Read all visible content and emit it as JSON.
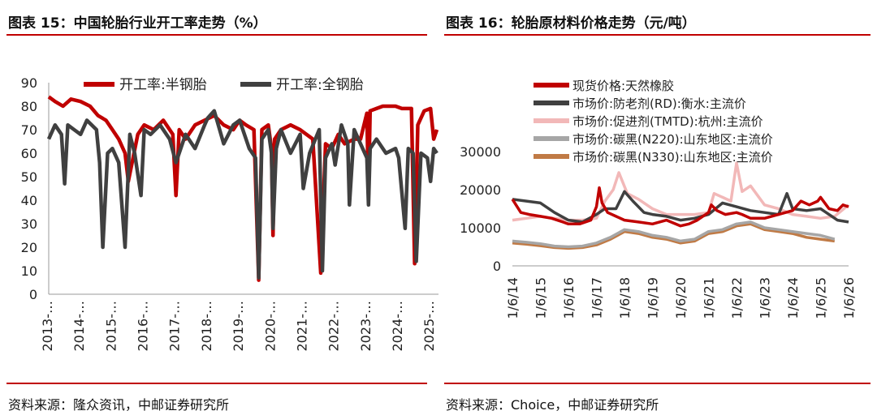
{
  "left_panel": {
    "title": "图表 15：中国轮胎行业开工率走势（%）",
    "source": "资料来源：隆众资讯，中邮证券研究所"
  },
  "right_panel": {
    "title": "图表 16：轮胎原材料价格走势（元/吨）",
    "source": "资料来源：Choice，中邮证券研究所"
  },
  "colors": {
    "rule": "#c00000",
    "red": "#c00000",
    "dark": "#404040",
    "pink": "#f2b8b8",
    "gray": "#a6a6a6",
    "brown": "#c07a45"
  },
  "chart_data": [
    {
      "type": "line",
      "title": "中国轮胎行业开工率走势（%）",
      "ylim": [
        0,
        90
      ],
      "yticks": [
        "0",
        "10",
        "20",
        "30",
        "40",
        "50",
        "60",
        "70",
        "80",
        "90"
      ],
      "xticks": [
        "2013-…",
        "2014-…",
        "2015-…",
        "2016-…",
        "2017-…",
        "2018-…",
        "2019-…",
        "2020-…",
        "2021-…",
        "2022-…",
        "2023-…",
        "2024-…",
        "2025-…"
      ],
      "legend": "top",
      "series": [
        {
          "name": "开工率:半钢胎",
          "color": "#c00000",
          "x": [
            2013.0,
            2013.2,
            2013.45,
            2013.7,
            2014.0,
            2014.3,
            2014.55,
            2014.8,
            2015.0,
            2015.2,
            2015.4,
            2015.5,
            2015.8,
            2016.0,
            2016.3,
            2016.6,
            2016.9,
            2017.0,
            2017.1,
            2017.3,
            2017.6,
            2017.9,
            2018.2,
            2018.5,
            2018.8,
            2019.0,
            2019.2,
            2019.45,
            2019.6,
            2019.7,
            2019.9,
            2020.0,
            2020.05,
            2020.1,
            2020.3,
            2020.6,
            2020.9,
            2021.1,
            2021.3,
            2021.55,
            2021.7,
            2021.9,
            2022.1,
            2022.3,
            2022.6,
            2022.8,
            2023.0,
            2023.05,
            2023.1,
            2023.3,
            2023.5,
            2023.7,
            2023.9,
            2024.1,
            2024.4,
            2024.5,
            2024.6,
            2024.8,
            2025.0,
            2025.1,
            2025.2
          ],
          "values": [
            84,
            82,
            80,
            83,
            82,
            80,
            76,
            74,
            70,
            66,
            60,
            48,
            68,
            72,
            70,
            74,
            68,
            42,
            70,
            66,
            72,
            74,
            76,
            72,
            70,
            74,
            72,
            70,
            6,
            70,
            72,
            62,
            25,
            66,
            70,
            72,
            70,
            68,
            66,
            9,
            64,
            62,
            68,
            64,
            66,
            66,
            77,
            42,
            78,
            79,
            80,
            80,
            80,
            79,
            79,
            13,
            72,
            78,
            79,
            66,
            70
          ]
        },
        {
          "name": "开工率:全钢胎",
          "color": "#404040",
          "x": [
            2013.0,
            2013.2,
            2013.4,
            2013.5,
            2013.6,
            2013.8,
            2014.0,
            2014.2,
            2014.5,
            2014.6,
            2014.7,
            2014.85,
            2015.0,
            2015.2,
            2015.4,
            2015.55,
            2015.7,
            2015.9,
            2016.0,
            2016.2,
            2016.5,
            2016.8,
            2017.0,
            2017.3,
            2017.6,
            2017.9,
            2018.0,
            2018.2,
            2018.5,
            2018.8,
            2019.0,
            2019.3,
            2019.5,
            2019.6,
            2019.7,
            2019.9,
            2020.0,
            2020.05,
            2020.15,
            2020.3,
            2020.6,
            2020.9,
            2021.0,
            2021.2,
            2021.5,
            2021.6,
            2021.7,
            2021.9,
            2022.0,
            2022.2,
            2022.4,
            2022.45,
            2022.6,
            2022.8,
            2023.0,
            2023.05,
            2023.1,
            2023.3,
            2023.6,
            2023.9,
            2024.0,
            2024.2,
            2024.3,
            2024.45,
            2024.55,
            2024.7,
            2024.9,
            2025.0,
            2025.1,
            2025.2
          ],
          "values": [
            66,
            72,
            68,
            47,
            72,
            70,
            68,
            74,
            70,
            56,
            20,
            60,
            62,
            56,
            20,
            68,
            60,
            42,
            70,
            68,
            72,
            66,
            56,
            68,
            62,
            72,
            75,
            78,
            64,
            72,
            74,
            62,
            58,
            7,
            66,
            70,
            60,
            28,
            62,
            70,
            60,
            68,
            45,
            60,
            70,
            10,
            58,
            64,
            55,
            72,
            64,
            38,
            70,
            64,
            58,
            38,
            62,
            66,
            60,
            62,
            58,
            28,
            62,
            60,
            14,
            60,
            58,
            48,
            62,
            60
          ]
        }
      ]
    },
    {
      "type": "line",
      "title": "轮胎原材料价格走势（元/吨）",
      "ylim": [
        0,
        30000
      ],
      "yticks": [
        "0",
        "10000",
        "20000",
        "30000"
      ],
      "xticks": [
        "1/6/14",
        "1/6/15",
        "1/6/16",
        "1/6/17",
        "1/6/18",
        "1/6/19",
        "1/6/20",
        "1/6/21",
        "1/6/22",
        "1/6/23",
        "1/6/24",
        "1/6/25",
        "1/6/26"
      ],
      "legend": "top-left",
      "series": [
        {
          "name": "现货价格:天然橡胶",
          "color": "#c00000",
          "x": [
            14.0,
            14.3,
            14.6,
            15.0,
            15.4,
            15.8,
            16.0,
            16.4,
            16.8,
            17.0,
            17.1,
            17.2,
            17.4,
            17.7,
            18.0,
            18.5,
            19.0,
            19.5,
            20.0,
            20.3,
            20.6,
            21.0,
            21.1,
            21.3,
            21.6,
            22.0,
            22.2,
            22.5,
            23.0,
            23.5,
            24.0,
            24.3,
            24.6,
            24.9,
            25.0,
            25.3,
            25.6,
            25.8,
            26.0
          ],
          "values": [
            17500,
            14000,
            13500,
            13000,
            12500,
            11500,
            11000,
            11000,
            12000,
            15500,
            20500,
            16500,
            14000,
            13000,
            12000,
            11500,
            11000,
            12000,
            10500,
            11000,
            12000,
            14000,
            16000,
            14500,
            13500,
            14000,
            13500,
            12500,
            12500,
            13500,
            14500,
            17000,
            16000,
            17000,
            18000,
            15000,
            14500,
            16000,
            15500
          ]
        },
        {
          "name": "市场价:防老剂(RD):衡水:主流价",
          "color": "#404040",
          "x": [
            14.0,
            14.5,
            15.0,
            15.5,
            16.0,
            16.5,
            17.0,
            17.3,
            17.7,
            18.0,
            18.3,
            18.7,
            19.0,
            19.5,
            20.0,
            20.5,
            21.0,
            21.5,
            22.0,
            22.5,
            23.0,
            23.5,
            23.8,
            24.0,
            24.5,
            25.0,
            25.3,
            25.6,
            26.0
          ],
          "values": [
            17500,
            17000,
            16500,
            14000,
            12000,
            11500,
            13500,
            15000,
            15000,
            19500,
            17000,
            14000,
            13500,
            13000,
            12000,
            12500,
            13500,
            16500,
            15500,
            14500,
            14000,
            13500,
            19000,
            15000,
            14500,
            15000,
            13500,
            12000,
            11500
          ]
        },
        {
          "name": "市场价:促进剂(TMTD):杭州:主流价",
          "color": "#f2b8b8",
          "x": [
            14.0,
            14.5,
            15.0,
            15.5,
            16.0,
            16.5,
            17.0,
            17.3,
            17.6,
            17.8,
            18.1,
            18.5,
            19.0,
            19.5,
            20.0,
            20.5,
            21.0,
            21.2,
            21.5,
            21.8,
            22.0,
            22.2,
            22.5,
            23.0,
            23.5,
            24.0,
            24.5,
            25.0,
            25.5,
            26.0
          ],
          "values": [
            12000,
            12500,
            13000,
            12500,
            12000,
            12000,
            12500,
            17000,
            20000,
            24500,
            19000,
            17500,
            15000,
            13500,
            13500,
            13500,
            14000,
            19000,
            18000,
            17000,
            27000,
            19500,
            21000,
            16000,
            15000,
            13500,
            13000,
            12500,
            13000,
            16000
          ]
        },
        {
          "name": "市场价:碳黑(N220):山东地区:主流价",
          "color": "#a6a6a6",
          "x": [
            14.0,
            14.5,
            15.0,
            15.5,
            16.0,
            16.5,
            17.0,
            17.5,
            18.0,
            18.5,
            19.0,
            19.5,
            20.0,
            20.5,
            21.0,
            21.5,
            22.0,
            22.5,
            23.0,
            23.5,
            24.0,
            24.5,
            25.0,
            25.5
          ],
          "values": [
            6500,
            6200,
            5800,
            5200,
            5000,
            5200,
            6000,
            7500,
            9500,
            9000,
            8000,
            7500,
            6500,
            7000,
            9000,
            9500,
            11000,
            11500,
            10000,
            9500,
            9000,
            8500,
            8000,
            7000
          ]
        },
        {
          "name": "市场价:碳黑(N330):山东地区:主流价",
          "color": "#c07a45",
          "x": [
            14.0,
            14.5,
            15.0,
            15.5,
            16.0,
            16.5,
            17.0,
            17.5,
            18.0,
            18.5,
            19.0,
            19.5,
            20.0,
            20.5,
            21.0,
            21.5,
            22.0,
            22.5,
            23.0,
            23.5,
            24.0,
            24.5,
            25.0,
            25.5
          ],
          "values": [
            6000,
            5700,
            5300,
            4800,
            4600,
            4800,
            5500,
            7000,
            9000,
            8500,
            7500,
            7000,
            6000,
            6500,
            8500,
            9000,
            10500,
            11000,
            9500,
            9000,
            8500,
            7500,
            7000,
            6500
          ]
        }
      ]
    }
  ]
}
